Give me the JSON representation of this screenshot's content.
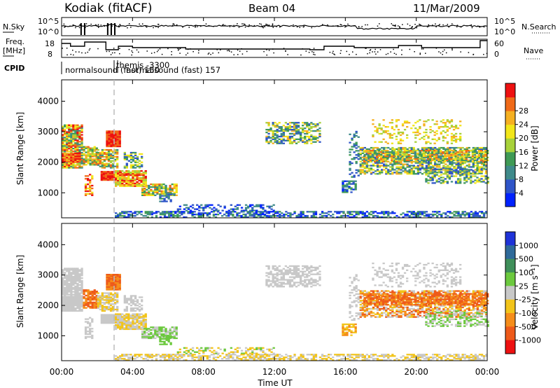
{
  "header": {
    "station": "Kodiak (fitACF)",
    "beam": "Beam 04",
    "date": "11/Mar/2009"
  },
  "side_labels": {
    "nsky": "N.Sky",
    "nsearch": "N.Search",
    "freq_top": "Freq.",
    "freq_unit": "[MHz]",
    "nave": "Nave",
    "cpid": "CPID"
  },
  "noise_axis": {
    "left": [
      "10^5",
      "10^0"
    ],
    "right": [
      "10^5",
      "10^0"
    ]
  },
  "freq_axis": {
    "left": [
      "18",
      "8"
    ],
    "right": [
      "60",
      "0"
    ]
  },
  "cpid_texts": [
    "normalsound (fast) 150",
    "themis -3300",
    "normalsound (fast) 157"
  ],
  "chart_data": [
    {
      "type": "heatmap",
      "name": "power",
      "ylabel": "Slant Range [km]",
      "xlabel": "",
      "ylim": [
        180,
        4700
      ],
      "yticks": [
        1000,
        2000,
        3000,
        4000
      ],
      "colorbar": {
        "label": "Power [dB]",
        "ticks": [
          4,
          8,
          12,
          16,
          20,
          24,
          28
        ],
        "colors": [
          "#0022ff",
          "#2f55c8",
          "#3f8a8a",
          "#3f9a55",
          "#a8d23a",
          "#f2e61a",
          "#f5b022",
          "#f06a18",
          "#ee1111"
        ]
      }
    },
    {
      "type": "heatmap",
      "name": "velocity",
      "ylabel": "Slant Range [km]",
      "xlabel": "Time UT",
      "ylim": [
        180,
        4700
      ],
      "yticks": [
        1000,
        2000,
        3000,
        4000
      ],
      "xticks": [
        "00:00",
        "04:00",
        "08:00",
        "12:00",
        "16:00",
        "20:00",
        "00:00"
      ],
      "colorbar": {
        "label": "Velocity [m s⁻¹]",
        "ticks": [
          "1000",
          "500",
          "100",
          "25",
          "-25",
          "-100",
          "-500",
          "-1000"
        ],
        "colors": [
          "#1f33d8",
          "#2f6a9a",
          "#3f8f5a",
          "#6cc93e",
          "#c8c8c8",
          "#f2c41a",
          "#f58d1a",
          "#ee5a1a",
          "#ee1111"
        ]
      }
    }
  ]
}
